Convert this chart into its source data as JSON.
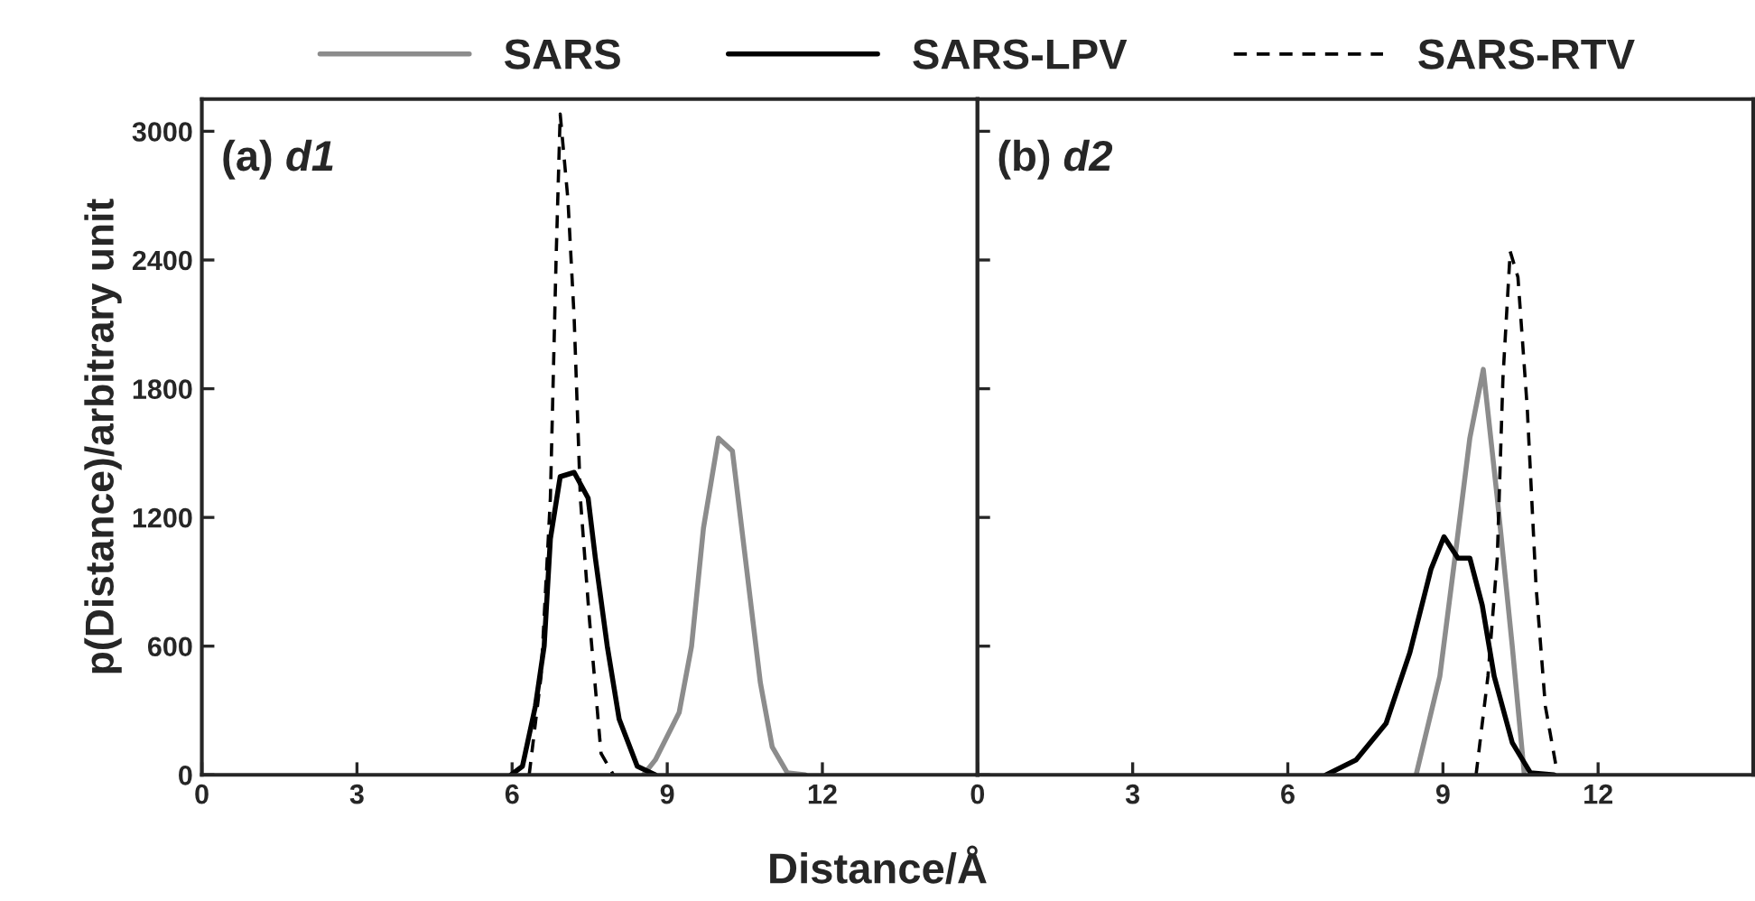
{
  "chart_data": [
    {
      "type": "line",
      "xlabel": "Distance/Å",
      "ylabel": "p(Distance)/arbitrary unit",
      "annotations": [
        "(a)",
        "d1"
      ],
      "legend": "top",
      "xlim": [
        0,
        15
      ],
      "xticks": [
        0,
        3,
        6,
        9,
        12,
        {
          "value": 15,
          "label": null
        }
      ],
      "ylim": [
        0,
        3150
      ],
      "yticks": [
        0,
        600,
        1200,
        1800,
        2400,
        3000
      ],
      "series": [
        {
          "name": "SARS",
          "color": "#8c8c8c",
          "line_style": "solid",
          "x": [
            8.54,
            8.77,
            9.23,
            9.47,
            9.7,
            9.99,
            10.26,
            10.51,
            10.8,
            11.03,
            11.32,
            11.67
          ],
          "values": [
            0,
            70,
            290,
            600,
            1150,
            1570,
            1510,
            1010,
            430,
            130,
            10,
            0
          ]
        },
        {
          "name": "SARS-LPV",
          "color": "#000000",
          "line_style": "solid",
          "x": [
            5.98,
            6.2,
            6.45,
            6.62,
            6.74,
            6.93,
            7.2,
            7.47,
            7.61,
            7.84,
            8.07,
            8.42,
            8.77
          ],
          "values": [
            0,
            40,
            320,
            600,
            1100,
            1390,
            1410,
            1290,
            1010,
            600,
            260,
            40,
            0
          ]
        },
        {
          "name": "SARS-RTV",
          "color": "#000000",
          "line_style": "dashed",
          "x": [
            6.33,
            6.56,
            6.74,
            6.85,
            6.93,
            7.08,
            7.2,
            7.32,
            7.49,
            7.72,
            7.96
          ],
          "values": [
            0,
            460,
            1290,
            2400,
            3080,
            2680,
            2130,
            1290,
            740,
            100,
            0
          ]
        }
      ]
    },
    {
      "type": "line",
      "annotations": [
        "(b)",
        "d2"
      ],
      "tick_labels": "x",
      "xlim": [
        0,
        15
      ],
      "xticks": [
        0,
        3,
        6,
        9,
        12,
        {
          "value": 15,
          "label": null
        }
      ],
      "ylim": [
        0,
        3150
      ],
      "yticks": [
        0,
        600,
        1200,
        1800,
        2400,
        3000
      ],
      "series": [
        {
          "color": "#8c8c8c",
          "line_style": "solid",
          "x": [
            8.48,
            8.94,
            9.23,
            9.52,
            9.78,
            10.05,
            10.34,
            10.57
          ],
          "values": [
            0,
            460,
            1010,
            1570,
            1890,
            1290,
            600,
            10
          ]
        },
        {
          "color": "#000000",
          "line_style": "solid",
          "x": [
            6.74,
            7.32,
            7.9,
            8.36,
            8.77,
            9.02,
            9.29,
            9.52,
            9.76,
            9.99,
            10.34,
            10.69,
            11.15
          ],
          "values": [
            0,
            70,
            240,
            570,
            960,
            1110,
            1010,
            1010,
            790,
            460,
            150,
            10,
            0
          ]
        },
        {
          "color": "#000000",
          "line_style": "dashed",
          "x": [
            9.64,
            9.87,
            10.05,
            10.16,
            10.3,
            10.45,
            10.63,
            10.8,
            10.98,
            11.21
          ],
          "values": [
            0,
            460,
            1010,
            1850,
            2440,
            2320,
            1710,
            880,
            320,
            10
          ]
        }
      ]
    }
  ]
}
